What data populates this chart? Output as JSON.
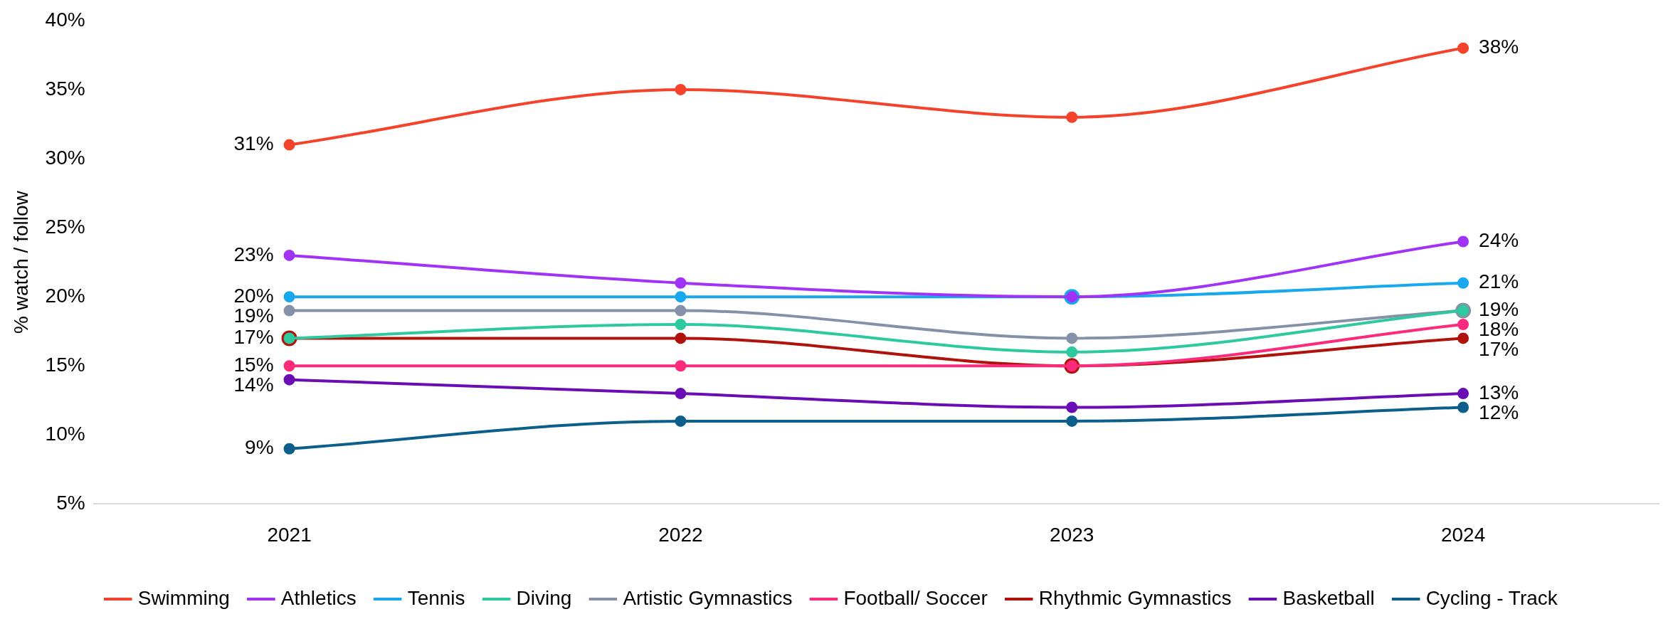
{
  "chart_data": {
    "type": "line",
    "ylabel": "% watch / follow",
    "categories": [
      "2021",
      "2022",
      "2023",
      "2024"
    ],
    "series": [
      {
        "name": "Swimming",
        "color": "#f5432b",
        "values": [
          31,
          35,
          33,
          38
        ],
        "value_labels": [
          "31%",
          null,
          null,
          "38%"
        ]
      },
      {
        "name": "Athletics",
        "color": "#a033f5",
        "values": [
          23,
          21,
          20,
          24
        ],
        "value_labels": [
          "23%",
          null,
          null,
          "24%"
        ]
      },
      {
        "name": "Tennis",
        "color": "#18a8ee",
        "values": [
          20,
          20,
          20,
          21
        ],
        "value_labels": [
          "20%",
          null,
          null,
          "21%"
        ]
      },
      {
        "name": "Diving",
        "color": "#2fc9a0",
        "values": [
          17,
          18,
          16,
          19
        ],
        "value_labels": [
          null,
          null,
          null,
          null
        ]
      },
      {
        "name": "Artistic Gymnastics",
        "color": "#8591a8",
        "values": [
          19,
          19,
          17,
          19
        ],
        "value_labels": [
          "19%",
          null,
          null,
          "19%"
        ]
      },
      {
        "name": "Football/ Soccer",
        "color": "#fc2a7b",
        "values": [
          15,
          15,
          15,
          18
        ],
        "value_labels": [
          "15%",
          null,
          null,
          "18%"
        ]
      },
      {
        "name": "Rhythmic Gymnastics",
        "color": "#b0120c",
        "values": [
          17,
          17,
          15,
          17
        ],
        "value_labels": [
          "17%",
          null,
          null,
          "17%"
        ]
      },
      {
        "name": "Basketball",
        "color": "#6a0db5",
        "values": [
          14,
          13,
          12,
          13
        ],
        "value_labels": [
          "14%",
          null,
          null,
          "13%"
        ]
      },
      {
        "name": "Cycling - Track",
        "color": "#0c5f8a",
        "values": [
          9,
          11,
          11,
          12
        ],
        "value_labels": [
          "9%",
          null,
          null,
          "12%"
        ]
      }
    ],
    "ylim": [
      5,
      40
    ],
    "yticks": [
      {
        "value": 5,
        "label": "5%"
      },
      {
        "value": 10,
        "label": "10%"
      },
      {
        "value": 15,
        "label": "15%"
      },
      {
        "value": 20,
        "label": "20%"
      },
      {
        "value": 25,
        "label": "25%"
      },
      {
        "value": 30,
        "label": "30%"
      },
      {
        "value": 35,
        "label": "35%"
      },
      {
        "value": 40,
        "label": "40%"
      }
    ],
    "grid": false,
    "legend": "bottom",
    "marker": "circle",
    "line_style": "solid"
  }
}
